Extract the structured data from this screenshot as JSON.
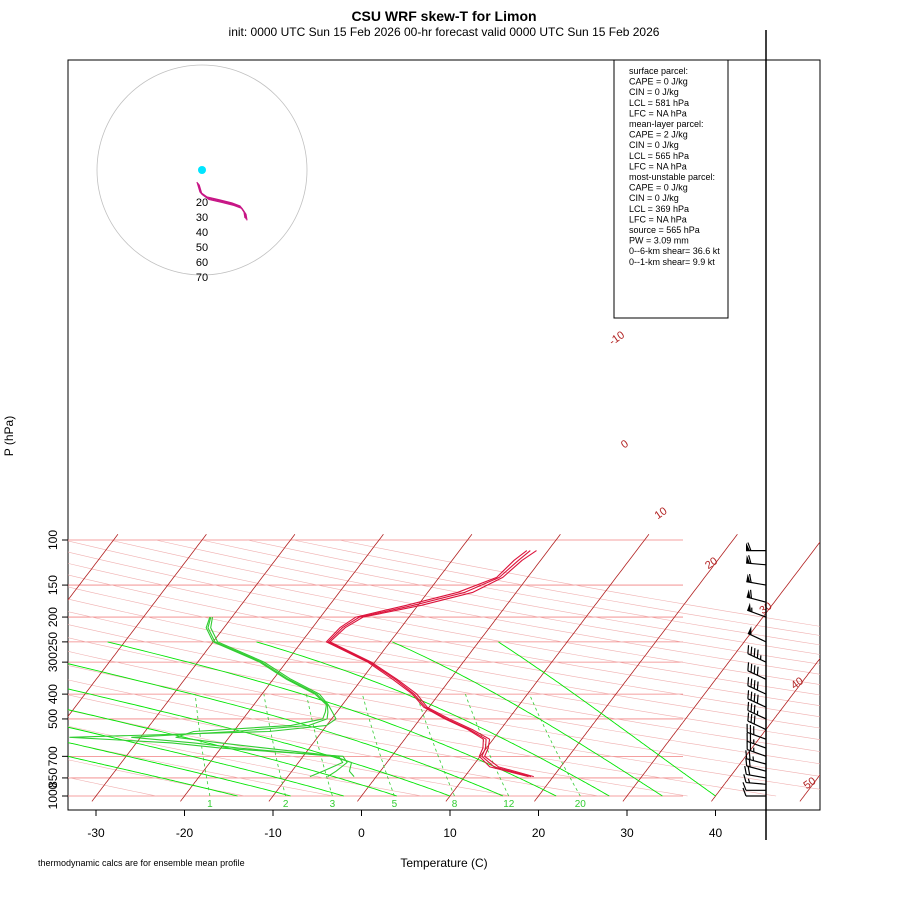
{
  "title": "CSU WRF skew-T for Limon",
  "subtitle": "init: 0000 UTC Sun 15 Feb 2026    00-hr forecast valid 0000 UTC Sun 15 Feb 2026",
  "footnote": "thermodynamic calcs are for ensemble mean profile",
  "info_box": {
    "lines": [
      "surface parcel:",
      "CAPE = 0 J/kg",
      "CIN = 0 J/kg",
      "LCL = 581 hPa",
      "LFC = NA hPa",
      "",
      "mean-layer parcel:",
      "CAPE = 2 J/kg",
      "CIN = 0 J/kg",
      "LCL = 565 hPa",
      "LFC = NA hPa",
      "",
      "most-unstable parcel:",
      "CAPE = 0 J/kg",
      "CIN = 0 J/kg",
      "LCL = 369 hPa",
      "LFC = NA hPa",
      "source = 565 hPa",
      "",
      "PW =  3.09 mm",
      "",
      "0--6-km shear= 36.6 kt",
      "0--1-km shear= 9.9 kt"
    ]
  },
  "hodograph": {
    "ring_labels": [
      "20",
      "30",
      "40",
      "50",
      "60",
      "70"
    ],
    "marker_color": "#00e5ff"
  },
  "colors": {
    "temperature": "#dc143c",
    "dewpoint": "#32cd32",
    "isotherm": "#b22222",
    "isobar": "#f08080",
    "dry_adiabat": "#f0b0b0",
    "moist_adiabat": "#00e600",
    "mixing_ratio": "#32cd32",
    "hodo_trace": "#c71585",
    "hodo_labels": "#8b008b"
  },
  "chart_data": {
    "type": "line",
    "xlabel": "Temperature (C)",
    "ylabel": "P (hPa)",
    "x_ticks": [
      -30,
      -20,
      -10,
      0,
      10,
      20,
      30,
      40
    ],
    "y_ticks": [
      100,
      150,
      200,
      250,
      300,
      400,
      500,
      700,
      850,
      1000
    ],
    "xlim": [
      -33,
      52
    ],
    "ylim": [
      1050,
      100
    ],
    "y_scale": "log",
    "isotherm_labels": [
      "-10",
      "0",
      "10",
      "20",
      "30",
      "40",
      "50"
    ],
    "mixing_ratio_labels": [
      "1",
      "2",
      "3",
      "5",
      "8",
      "12",
      "20"
    ],
    "series": [
      {
        "kind": "temperature",
        "members": [
          {
            "p": [
              840,
              770,
              700,
              650,
              600,
              550,
              500,
              450,
              400,
              350,
              300,
              250,
              220,
              200,
              180,
              160,
              140,
              120,
              110
            ],
            "t": [
              17.5,
              12.5,
              10.2,
              9.9,
              9.2,
              6.5,
              3.0,
              -0.4,
              -2.8,
              -6.2,
              -10.6,
              -17.0,
              -16.6,
              -15.6,
              -10.5,
              -5.8,
              -3.2,
              -2.5,
              -2.0
            ]
          },
          {
            "p": [
              840,
              770,
              700,
              650,
              600,
              550,
              500,
              450,
              400,
              350,
              300,
              250,
              220,
              200,
              180,
              160,
              140,
              120,
              110
            ],
            "t": [
              17.8,
              13.0,
              10.5,
              10.2,
              9.6,
              6.8,
              3.3,
              -0.2,
              -2.5,
              -6.0,
              -10.4,
              -16.8,
              -16.3,
              -15.2,
              -9.6,
              -4.9,
              -2.8,
              -2.1,
              -1.3
            ]
          },
          {
            "p": [
              840,
              770,
              700,
              650,
              600,
              550,
              500,
              450,
              400,
              350,
              300,
              250,
              220,
              200,
              180,
              160,
              140,
              120,
              110
            ],
            "t": [
              17.2,
              12.0,
              9.9,
              9.6,
              8.9,
              6.3,
              2.8,
              -0.6,
              -3.0,
              -6.5,
              -10.8,
              -17.2,
              -16.9,
              -16.0,
              -11.3,
              -6.6,
              -3.5,
              -3.0,
              -2.4
            ]
          }
        ]
      },
      {
        "kind": "dewpoint",
        "members": [
          {
            "p": [
              840,
              800,
              740,
              700,
              650,
              620,
              590,
              560,
              530,
              500,
              470,
              440,
              400,
              350,
              300,
              250,
              220,
              200
            ],
            "td": [
              -7.5,
              -6.5,
              -5.0,
              -6.0,
              -15.0,
              -20.5,
              -26.0,
              -24.5,
              -14.0,
              -11.0,
              -11.3,
              -11.8,
              -14.0,
              -18.5,
              -23.0,
              -30.0,
              -32.0,
              -32.5
            ]
          },
          {
            "p": [
              840,
              800,
              740,
              700,
              650,
              620,
              590,
              560,
              530,
              500,
              470,
              440,
              400,
              350,
              300,
              250,
              220,
              200
            ],
            "td": [
              -5.5,
              -5.0,
              -4.5,
              -5.5,
              -20.0,
              -26.0,
              -38.0,
              -16.0,
              -10.0,
              -9.5,
              -10.5,
              -11.6,
              -13.5,
              -18.0,
              -22.5,
              -29.5,
              -31.5,
              -32.2
            ]
          },
          {
            "p": [
              840,
              800,
              740,
              700,
              650,
              620,
              590,
              560,
              530,
              500,
              470,
              440,
              400,
              350,
              300,
              250,
              220,
              200
            ],
            "td": [
              -2.5,
              -3.5,
              -4.0,
              -6.5,
              -18.0,
              -23.5,
              -31.0,
              -20.0,
              -12.0,
              -10.5,
              -11.0,
              -11.7,
              -13.8,
              -18.3,
              -22.8,
              -29.8,
              -31.8,
              -32.4
            ]
          }
        ]
      }
    ],
    "wind_barbs": {
      "pressure": [
        1000,
        950,
        900,
        850,
        800,
        750,
        700,
        650,
        600,
        550,
        500,
        450,
        400,
        350,
        300,
        250,
        200,
        175,
        150,
        125,
        110
      ],
      "speed_kt": [
        10,
        12,
        15,
        20,
        22,
        25,
        25,
        25,
        30,
        30,
        35,
        40,
        40,
        40,
        45,
        50,
        55,
        60,
        60,
        60,
        60
      ],
      "direction_deg": [
        270,
        270,
        275,
        280,
        285,
        285,
        290,
        290,
        290,
        295,
        295,
        295,
        295,
        295,
        295,
        295,
        290,
        285,
        280,
        275,
        270
      ]
    }
  }
}
